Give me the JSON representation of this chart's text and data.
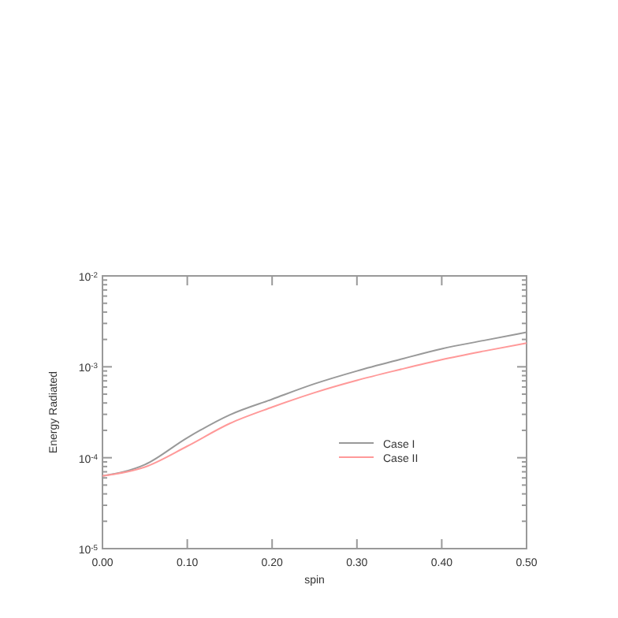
{
  "chart_data": {
    "type": "line",
    "xlabel": "spin",
    "ylabel": "Energy Radiated",
    "log": "y",
    "x": [
      0,
      0.05,
      0.1,
      0.15,
      0.2,
      0.25,
      0.3,
      0.35,
      0.4,
      0.45,
      0.5
    ],
    "series": [
      {
        "name": "Case I",
        "color": "#999999",
        "values": [
          6.3e-05,
          8.4e-05,
          0.000166,
          0.000296,
          0.00044,
          0.00065,
          0.0009,
          0.0012,
          0.00158,
          0.00195,
          0.0024
        ]
      },
      {
        "name": "Case II",
        "color": "#ff9999",
        "values": [
          6.3e-05,
          7.9e-05,
          0.000134,
          0.000238,
          0.00036,
          0.00052,
          0.00071,
          0.00093,
          0.0012,
          0.00149,
          0.00182
        ]
      }
    ],
    "xlim": [
      0,
      0.5
    ],
    "xticks": [
      {
        "value": 0,
        "label": "0.00"
      },
      {
        "value": 0.1,
        "label": "0.10"
      },
      {
        "value": 0.2,
        "label": "0.20"
      },
      {
        "value": 0.3,
        "label": "0.30"
      },
      {
        "value": 0.4,
        "label": "0.40"
      },
      {
        "value": 0.5,
        "label": "0.50"
      }
    ],
    "ylim": [
      1e-05,
      0.01
    ],
    "yticks": [
      {
        "value": 1e-05,
        "label": "10$^{-5}$"
      },
      {
        "value": 0.0001,
        "label": "10$^{-4}$"
      },
      {
        "value": 0.001,
        "label": "10$^{-3}$"
      },
      {
        "value": 0.01,
        "label": "10$^{-2}$"
      }
    ],
    "grid": false,
    "legend": "right",
    "marker": "none",
    "line_style": "solid"
  }
}
